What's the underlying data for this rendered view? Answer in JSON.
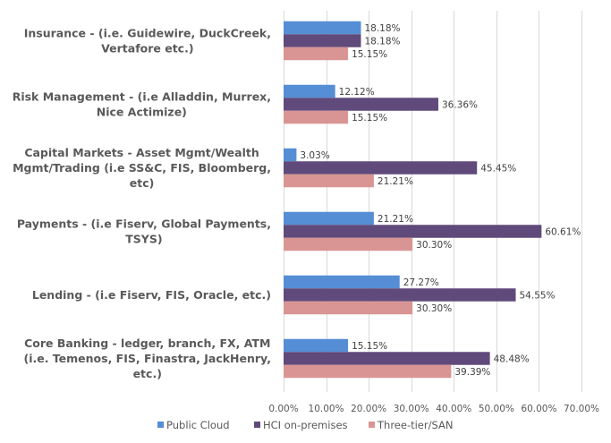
{
  "chart_data": {
    "type": "bar",
    "orientation": "horizontal",
    "title": "",
    "xlabel": "",
    "ylabel": "",
    "xlim": [
      0,
      70
    ],
    "grid": true,
    "legend_position": "bottom",
    "categories": [
      [
        "Insurance - (i.e. Guidewire, DuckCreek,",
        "Vertafore etc.)"
      ],
      [
        "Risk Management - (i.e Alladdin, Murrex,",
        "Nice Actimize)"
      ],
      [
        "Capital Markets - Asset Mgmt/Wealth",
        "Mgmt/Trading (i.e SS&C, FIS, Bloomberg,",
        "etc)"
      ],
      [
        "Payments - (i.e Fiserv, Global Payments,",
        "TSYS)"
      ],
      [
        "Lending - (i.e Fiserv, FIS, Oracle, etc.)"
      ],
      [
        "Core Banking - ledger, branch, FX, ATM",
        "(i.e. Temenos, FIS, Finastra, JackHenry,",
        "etc.)"
      ]
    ],
    "series": [
      {
        "name": "Public Cloud",
        "color": "#558ed5",
        "values": [
          18.18,
          12.12,
          3.03,
          21.21,
          27.27,
          15.15
        ],
        "labels": [
          "18.18%",
          "12.12%",
          "3.03%",
          "21.21%",
          "27.27%",
          "15.15%"
        ]
      },
      {
        "name": "HCI on-premises",
        "color": "#604a7b",
        "values": [
          18.18,
          36.36,
          45.45,
          60.61,
          54.55,
          48.48
        ],
        "labels": [
          "18.18%",
          "36.36%",
          "45.45%",
          "60.61%",
          "54.55%",
          "48.48%"
        ]
      },
      {
        "name": "Three-tier/SAN",
        "color": "#d99594",
        "values": [
          15.15,
          15.15,
          21.21,
          30.3,
          30.3,
          39.39
        ],
        "labels": [
          "15.15%",
          "15.15%",
          "21.21%",
          "30.30%",
          "30.30%",
          "39.39%"
        ]
      }
    ],
    "x_ticks": [
      0,
      10,
      20,
      30,
      40,
      50,
      60,
      70
    ],
    "x_tick_labels": [
      "0.00%",
      "10.00%",
      "20.00%",
      "30.00%",
      "40.00%",
      "50.00%",
      "60.00%",
      "70.00%"
    ],
    "gridline_color": "#d9d9d9"
  }
}
